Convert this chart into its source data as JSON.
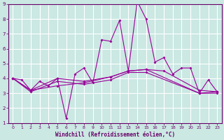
{
  "title": "",
  "xlabel": "Windchill (Refroidissement éolien,°C)",
  "background_color": "#cbe8e3",
  "plot_bg_color": "#cbe8e3",
  "grid_color": "#ffffff",
  "line_color": "#990099",
  "spine_color": "#660066",
  "tick_color": "#660066",
  "xlabel_color": "#660066",
  "xlim": [
    -0.5,
    23.5
  ],
  "ylim": [
    1,
    9
  ],
  "xtick_vals": [
    0,
    1,
    2,
    3,
    4,
    5,
    6,
    7,
    8,
    9,
    10,
    11,
    12,
    13,
    14,
    15,
    16,
    17,
    18,
    19,
    20,
    21,
    22,
    23
  ],
  "ytick_vals": [
    1,
    2,
    3,
    4,
    5,
    6,
    7,
    8,
    9
  ],
  "series": [
    {
      "x": [
        0,
        1,
        2,
        3,
        4,
        5,
        6,
        7,
        8,
        9,
        10,
        11,
        12,
        13,
        14,
        15,
        16,
        17,
        18,
        19,
        20,
        21,
        22,
        23
      ],
      "y": [
        4.0,
        3.9,
        3.2,
        3.8,
        3.5,
        4.0,
        1.3,
        4.3,
        4.7,
        3.7,
        6.6,
        6.5,
        7.9,
        4.5,
        9.2,
        8.0,
        5.1,
        5.4,
        4.3,
        4.7,
        4.7,
        3.0,
        3.9,
        3.1
      ]
    },
    {
      "x": [
        0,
        2,
        5,
        8,
        11,
        13,
        15,
        17,
        21,
        23
      ],
      "y": [
        4.0,
        3.2,
        3.5,
        3.7,
        4.1,
        4.5,
        4.6,
        4.5,
        3.2,
        3.1
      ]
    },
    {
      "x": [
        0,
        2,
        5,
        8,
        11,
        13,
        15,
        21,
        23
      ],
      "y": [
        4.0,
        3.2,
        4.0,
        3.8,
        4.1,
        4.5,
        4.6,
        3.0,
        3.1
      ]
    },
    {
      "x": [
        0,
        2,
        5,
        8,
        11,
        13,
        15,
        21,
        23
      ],
      "y": [
        4.0,
        3.1,
        3.8,
        3.6,
        3.9,
        4.4,
        4.4,
        3.0,
        3.0
      ]
    }
  ]
}
